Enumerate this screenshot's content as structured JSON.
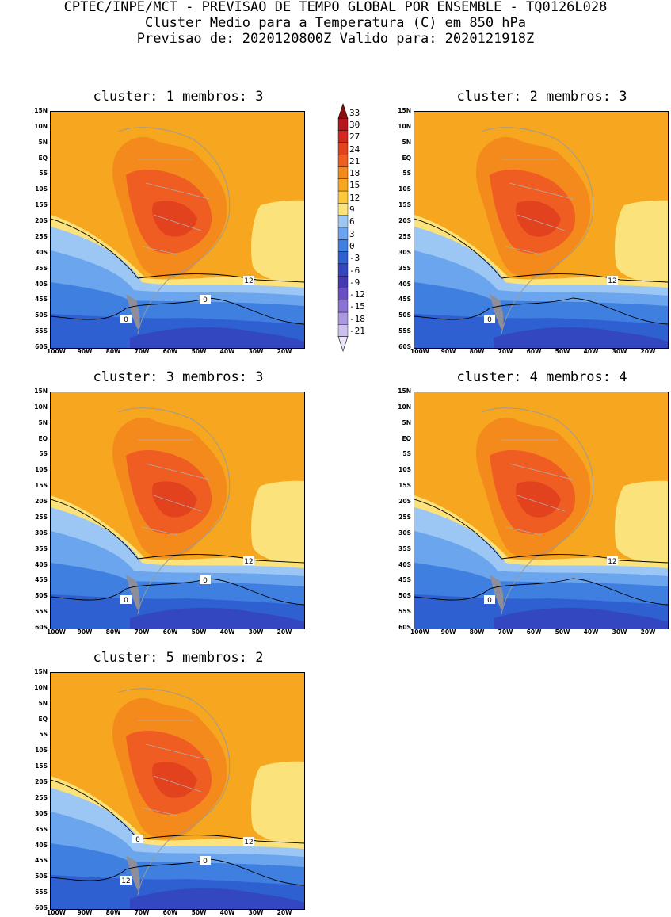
{
  "header": {
    "line1": "CPTEC/INPE/MCT - PREVISAO DE TEMPO GLOBAL POR ENSEMBLE - TQ0126L028",
    "line2": "Cluster Medio para a Temperatura (C) em 850 hPa",
    "line3": "Previsao de: 2020120800Z   Valido para: 2020121918Z"
  },
  "panels": [
    {
      "title": "cluster: 1  membros: 3",
      "contour_labels": [
        "12",
        "0",
        "0"
      ]
    },
    {
      "title": "cluster: 2  membros: 3",
      "contour_labels": [
        "12",
        "0"
      ]
    },
    {
      "title": "cluster: 3  membros: 3",
      "contour_labels": [
        "12",
        "0",
        "0"
      ]
    },
    {
      "title": "cluster: 4  membros: 4",
      "contour_labels": [
        "12",
        "0"
      ]
    },
    {
      "title": "cluster: 5  membros: 2",
      "contour_labels": [
        "12",
        "12",
        "0",
        "0"
      ]
    }
  ],
  "axes": {
    "lat_labels": [
      "15N",
      "10N",
      "5N",
      "EQ",
      "5S",
      "10S",
      "15S",
      "20S",
      "25S",
      "30S",
      "35S",
      "40S",
      "45S",
      "50S",
      "55S",
      "60S"
    ],
    "lon_labels": [
      "100W",
      "90W",
      "80W",
      "70W",
      "60W",
      "50W",
      "40W",
      "30W",
      "20W"
    ]
  },
  "colorbar": {
    "labels": [
      "33",
      "30",
      "27",
      "24",
      "21",
      "18",
      "15",
      "12",
      "9",
      "6",
      "3",
      "0",
      "-3",
      "-6",
      "-9",
      "-12",
      "-15",
      "-18",
      "-21"
    ],
    "colors": [
      "#8c0d0d",
      "#b5171c",
      "#d2281e",
      "#e2421e",
      "#ef5d23",
      "#f48a1c",
      "#f6a71f",
      "#fbc93a",
      "#fbe27a",
      "#9cc7f5",
      "#6aa5ee",
      "#3f7fe0",
      "#2f60d2",
      "#3348c0",
      "#4739b4",
      "#6a4fc4",
      "#8a72d4",
      "#ab98e0",
      "#ccc0ee",
      "#e9e4f8"
    ]
  }
}
